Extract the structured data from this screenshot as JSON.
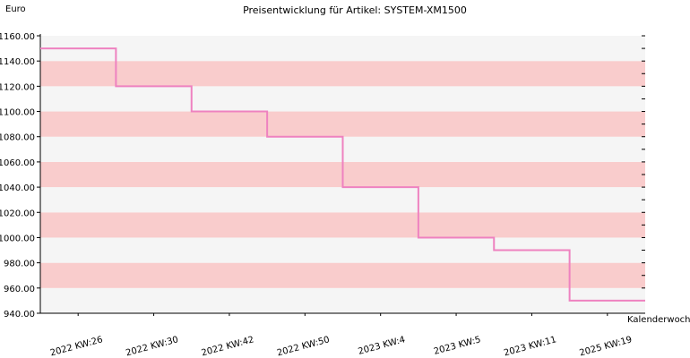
{
  "chart_data": {
    "type": "line",
    "step": true,
    "title": "Preisentwicklung für Artikel: SYSTEM-XM1500",
    "ylabel": "Euro",
    "xlabel": "Kalenderwoche",
    "categories": [
      "2022 KW:26",
      "2022 KW:30",
      "2022 KW:42",
      "2022 KW:50",
      "2023 KW:4",
      "2023 KW:5",
      "2023 KW:11",
      "2025 KW:19"
    ],
    "series": [
      {
        "values": [
          1150,
          1120,
          1100,
          1080,
          1040,
          1000,
          990,
          950
        ]
      }
    ],
    "ylim": [
      940,
      1160
    ],
    "yticks": [
      "940.00",
      "960.00",
      "980.00",
      "1000.00",
      "1020.00",
      "1040.00",
      "1060.00",
      "1080.00",
      "1100.00",
      "1120.00",
      "1140.00",
      "1160.00"
    ],
    "ytick_step": 20,
    "grid": "alternating horizontal bands",
    "colors": {
      "line": "#ee82c0",
      "band_light": "#f5f5f5",
      "band_dark": "#f9cccc",
      "axis": "#000000"
    }
  }
}
